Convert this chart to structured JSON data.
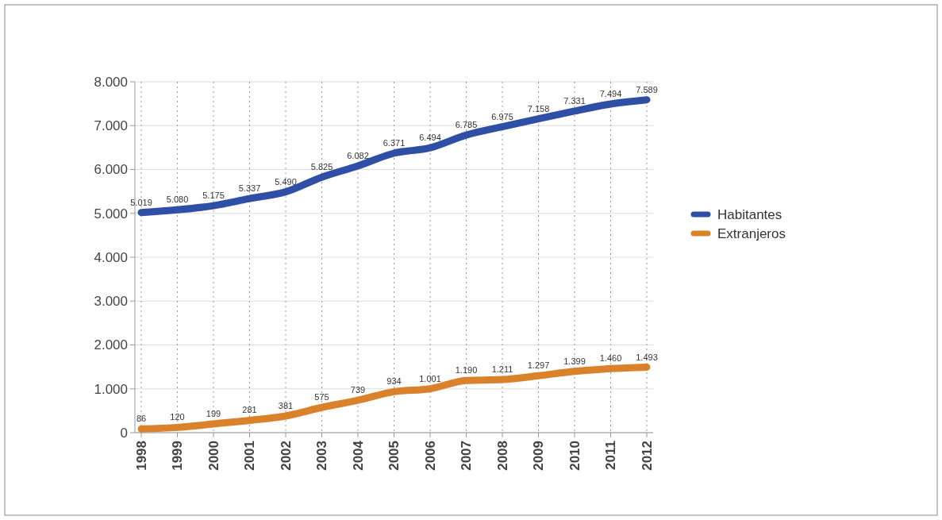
{
  "chart_data": {
    "type": "line",
    "categories": [
      "1998",
      "1999",
      "2000",
      "2001",
      "2002",
      "2003",
      "2004",
      "2005",
      "2006",
      "2007",
      "2008",
      "2009",
      "2010",
      "2011",
      "2012"
    ],
    "series": [
      {
        "name": "Habitantes",
        "color": "#2f4fa6",
        "values": [
          5019,
          5080,
          5175,
          5337,
          5490,
          5825,
          6082,
          6371,
          6494,
          6785,
          6975,
          7158,
          7331,
          7494,
          7589
        ],
        "value_labels": [
          "5.019",
          "5.080",
          "5.175",
          "5.337",
          "5.490",
          "5.825",
          "6.082",
          "6.371",
          "6.494",
          "6.785",
          "6.975",
          "7.158",
          "7.331",
          "7.494",
          "7.589"
        ]
      },
      {
        "name": "Extranjeros",
        "color": "#d9822b",
        "values": [
          86,
          120,
          199,
          281,
          381,
          575,
          739,
          934,
          1001,
          1190,
          1211,
          1297,
          1399,
          1460,
          1493
        ],
        "value_labels": [
          "86",
          "120",
          "199",
          "281",
          "381",
          "575",
          "739",
          "934",
          "1.001",
          "1.190",
          "1.211",
          "1.297",
          "1.399",
          "1.460",
          "1.493"
        ]
      }
    ],
    "ylim": [
      0,
      8000
    ],
    "yticks": [
      0,
      {
        "value": 1000,
        "label": "1.000"
      },
      {
        "value": 2000,
        "label": "2.000"
      },
      {
        "value": 3000,
        "label": "3.000"
      },
      {
        "value": 4000,
        "label": "4.000"
      },
      {
        "value": 5000,
        "label": "5.000"
      },
      {
        "value": 6000,
        "label": "6.000"
      },
      {
        "value": 7000,
        "label": "7.000"
      },
      {
        "value": 8000,
        "label": "8.000"
      }
    ],
    "grid": true,
    "legend": "right",
    "marker": "none",
    "line_style": "solid"
  }
}
